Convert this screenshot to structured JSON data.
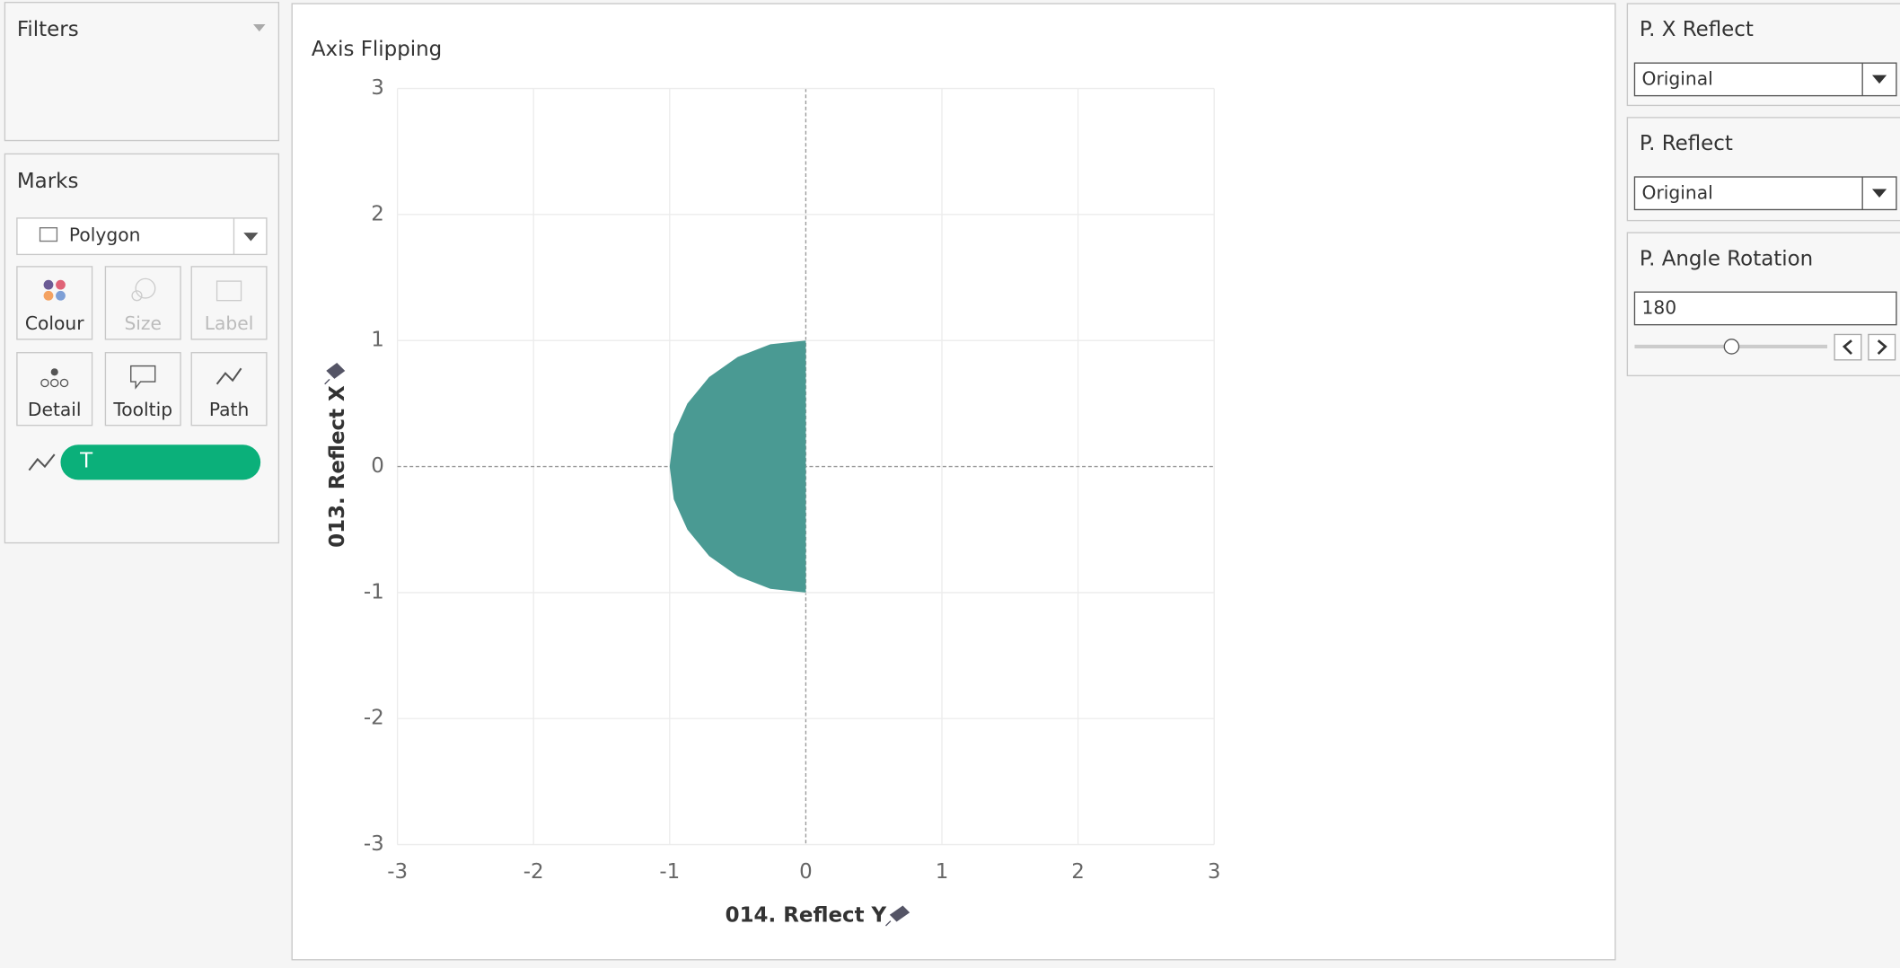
{
  "filters": {
    "title": "Filters"
  },
  "marks": {
    "title": "Marks",
    "mark_type": "Polygon",
    "buttons": [
      "Colour",
      "Size",
      "Label",
      "Detail",
      "Tooltip",
      "Path"
    ],
    "path_pill": "T"
  },
  "parameters": [
    {
      "title": "P. X Reflect",
      "value": "Original"
    },
    {
      "title": "P. Reflect",
      "value": "Original"
    },
    {
      "title": "P. Angle Rotation",
      "value": 180
    }
  ],
  "chart_data": {
    "type": "polygon",
    "title": "Axis Flipping",
    "x_label": "014. Reflect Y",
    "y_label": "013. Reflect X",
    "x": [
      0,
      -0.26,
      -0.5,
      -0.71,
      -0.87,
      -0.97,
      -1,
      -0.97,
      -0.87,
      -0.71,
      -0.5,
      -0.26,
      0
    ],
    "values": [
      1,
      0.97,
      0.87,
      0.71,
      0.5,
      0.26,
      0,
      -0.26,
      -0.5,
      -0.71,
      -0.87,
      -0.97,
      -1
    ],
    "color": "#4a9a93",
    "xlim": [
      -3,
      3
    ],
    "ylim": [
      -3,
      3
    ],
    "xticks": [
      -3,
      -2,
      -1,
      0,
      1,
      2,
      3
    ],
    "yticks": [
      -3,
      -2,
      -1,
      0,
      1,
      2,
      3
    ],
    "grid": true,
    "zero_lines": true
  }
}
